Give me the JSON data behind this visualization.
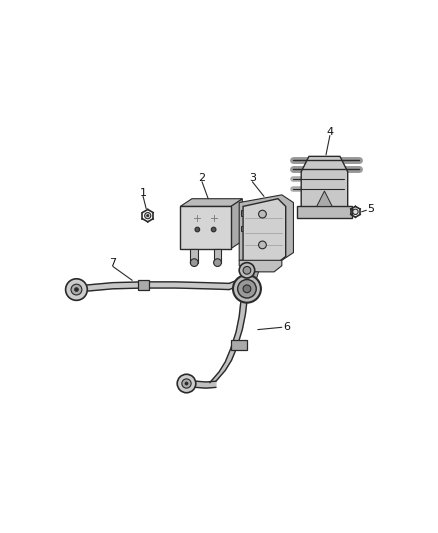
{
  "background_color": "#ffffff",
  "fig_width": 4.38,
  "fig_height": 5.33,
  "dpi": 100,
  "line_color": "#2a2a2a",
  "fill_light": "#c8c8c8",
  "fill_mid": "#a8a8a8",
  "fill_dark": "#888888"
}
